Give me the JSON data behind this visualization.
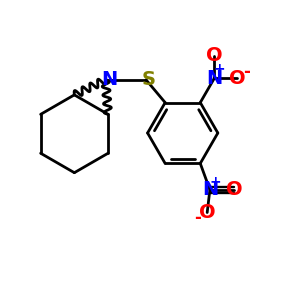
{
  "bg_color": "#ffffff",
  "bond_color": "#000000",
  "N_color": "#0000ff",
  "O_color": "#ff0000",
  "S_color": "#808000",
  "line_width": 2.0,
  "font_size_atom": 14,
  "font_size_charge": 9,
  "xlim": [
    0.0,
    5.5
  ],
  "ylim": [
    0.5,
    5.2
  ]
}
